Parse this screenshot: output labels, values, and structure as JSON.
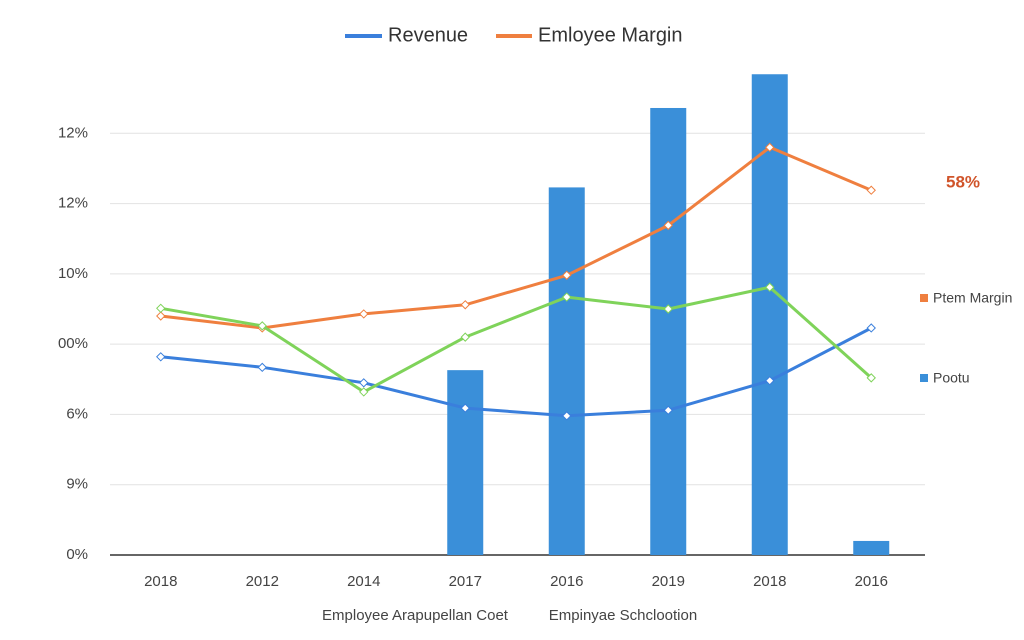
{
  "chart_data": {
    "type": "combo",
    "categories": [
      "2018",
      "2012",
      "2014",
      "2017",
      "2016",
      "2019",
      "2018",
      "2016"
    ],
    "series": [
      {
        "name": "Revenue",
        "type": "line",
        "color": "#3a7fdc",
        "values": [
          2.82,
          2.67,
          2.45,
          2.09,
          1.98,
          2.06,
          2.48,
          3.23
        ]
      },
      {
        "name": "Emloyee Margin",
        "type": "line",
        "color": "#ef7f3f",
        "values": [
          3.4,
          3.23,
          3.43,
          3.56,
          3.98,
          4.69,
          5.8,
          5.19
        ]
      },
      {
        "type": "line",
        "color": "#7fd35a",
        "values": [
          3.51,
          3.26,
          2.32,
          3.1,
          3.67,
          3.5,
          3.81,
          2.52
        ]
      },
      {
        "name": "Pootu",
        "type": "bar",
        "color": "#3a8fd9",
        "values": [
          null,
          null,
          null,
          2.63,
          5.23,
          6.36,
          6.84,
          0.2
        ]
      }
    ],
    "ylim": [
      0,
      7
    ],
    "yticks": [
      {
        "value": 0,
        "label": "0%"
      },
      {
        "value": 1,
        "label": "9%"
      },
      {
        "value": 2,
        "label": "6%"
      },
      {
        "value": 3,
        "label": "00%"
      },
      {
        "value": 4,
        "label": "10%"
      },
      {
        "value": 5,
        "label": "12%"
      },
      {
        "value": 6,
        "label": "12%"
      }
    ],
    "grid": true,
    "annotations": [
      "58%",
      "Ptem Margin"
    ],
    "axis_labels": [
      "Employee Arapupellan Coet",
      "Empinyae Schclootion"
    ]
  }
}
